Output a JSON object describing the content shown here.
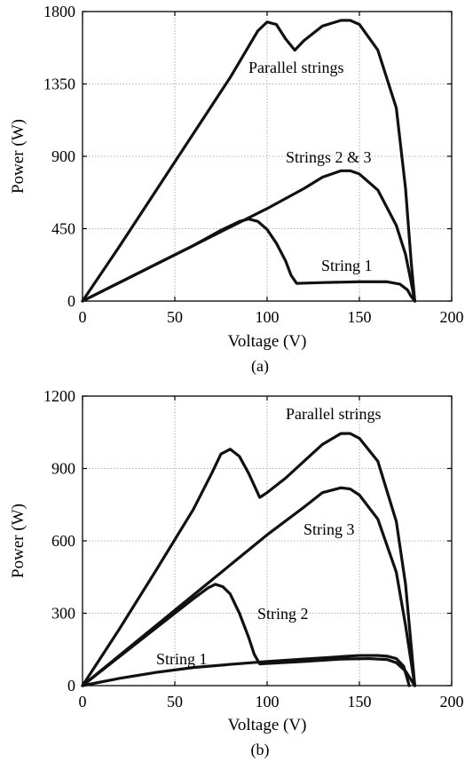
{
  "chart_data": [
    {
      "type": "line",
      "panel_label": "(a)",
      "xlabel": "Voltage (V)",
      "ylabel": "Power (W)",
      "xlim": [
        0,
        200
      ],
      "ylim": [
        0,
        1800
      ],
      "xticks": [
        0,
        50,
        100,
        150,
        200
      ],
      "yticks": [
        0,
        450,
        900,
        1350,
        1800
      ],
      "grid": true,
      "series": [
        {
          "name": "Parallel strings",
          "x": [
            0,
            20,
            40,
            60,
            80,
            95,
            100,
            105,
            110,
            115,
            120,
            130,
            140,
            145,
            150,
            160,
            170,
            175,
            178,
            180
          ],
          "y": [
            0,
            340,
            690,
            1040,
            1390,
            1680,
            1735,
            1720,
            1630,
            1560,
            1620,
            1710,
            1745,
            1745,
            1720,
            1560,
            1200,
            700,
            250,
            0
          ]
        },
        {
          "name": "Strings 2 & 3",
          "x": [
            0,
            20,
            40,
            60,
            80,
            100,
            120,
            130,
            140,
            145,
            150,
            160,
            170,
            175,
            178,
            180
          ],
          "y": [
            0,
            115,
            230,
            345,
            460,
            575,
            700,
            770,
            810,
            810,
            790,
            690,
            470,
            290,
            120,
            0
          ]
        },
        {
          "name": "String 1",
          "x": [
            0,
            20,
            40,
            60,
            75,
            85,
            90,
            95,
            100,
            105,
            110,
            113,
            116,
            130,
            150,
            165,
            172,
            176,
            178,
            180
          ],
          "y": [
            0,
            115,
            230,
            345,
            440,
            495,
            510,
            495,
            445,
            360,
            250,
            160,
            110,
            115,
            120,
            120,
            105,
            70,
            30,
            0
          ]
        }
      ]
    },
    {
      "type": "line",
      "panel_label": "(b)",
      "xlabel": "Voltage (V)",
      "ylabel": "Power (W)",
      "xlim": [
        0,
        200
      ],
      "ylim": [
        0,
        1200
      ],
      "xticks": [
        0,
        50,
        100,
        150,
        200
      ],
      "yticks": [
        0,
        300,
        600,
        900,
        1200
      ],
      "grid": true,
      "series": [
        {
          "name": "Parallel strings",
          "x": [
            0,
            20,
            40,
            60,
            70,
            75,
            80,
            85,
            90,
            96,
            100,
            110,
            120,
            130,
            140,
            145,
            150,
            160,
            170,
            175,
            178,
            180
          ],
          "y": [
            0,
            235,
            480,
            730,
            880,
            960,
            980,
            950,
            880,
            780,
            800,
            860,
            930,
            1000,
            1045,
            1045,
            1025,
            930,
            680,
            420,
            170,
            0
          ]
        },
        {
          "name": "String 3",
          "x": [
            0,
            20,
            40,
            60,
            80,
            100,
            120,
            130,
            140,
            145,
            150,
            160,
            170,
            175,
            180
          ],
          "y": [
            0,
            125,
            250,
            375,
            500,
            625,
            740,
            800,
            820,
            815,
            790,
            690,
            470,
            250,
            0
          ]
        },
        {
          "name": "String 2",
          "x": [
            0,
            20,
            40,
            60,
            68,
            72,
            76,
            80,
            85,
            90,
            93,
            96,
            120,
            140,
            155,
            165,
            170,
            175,
            180
          ],
          "y": [
            0,
            120,
            240,
            360,
            405,
            420,
            410,
            380,
            300,
            200,
            130,
            90,
            100,
            110,
            112,
            108,
            95,
            60,
            0
          ]
        },
        {
          "name": "String 1",
          "x": [
            0,
            20,
            40,
            60,
            80,
            100,
            120,
            140,
            150,
            160,
            165,
            170,
            174,
            177
          ],
          "y": [
            0,
            30,
            55,
            75,
            88,
            100,
            110,
            120,
            125,
            125,
            122,
            112,
            80,
            0
          ]
        }
      ]
    }
  ]
}
